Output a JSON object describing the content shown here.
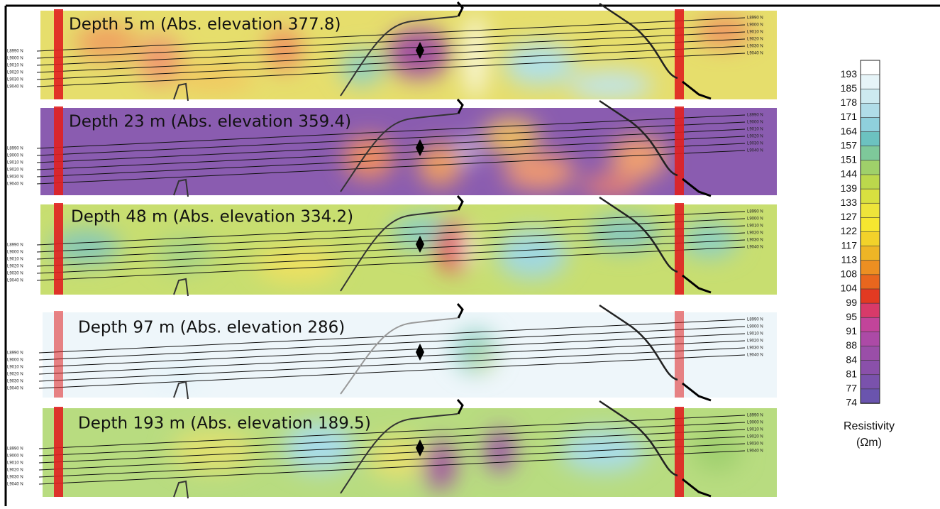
{
  "panels": [
    {
      "title": "Depth 5 m (Abs. elevation 377.8)"
    },
    {
      "title": "Depth 23 m (Abs. elevation 359.4)"
    },
    {
      "title": "Depth 48 m (Abs. elevation 334.2)"
    },
    {
      "title": "Depth 97 m (Abs. elevation 286)"
    },
    {
      "title": "Depth 193 m (Abs. elevation 189.5)"
    }
  ],
  "line_labels": [
    "L8990 N",
    "L9000 N",
    "L9010 N",
    "L9020 N",
    "L9030 N",
    "L9040 N"
  ],
  "colorbar": {
    "ticks": [
      "193",
      "185",
      "178",
      "171",
      "164",
      "157",
      "151",
      "144",
      "139",
      "133",
      "127",
      "122",
      "117",
      "113",
      "108",
      "104",
      "99",
      "95",
      "91",
      "88",
      "84",
      "81",
      "77",
      "74"
    ],
    "colors": [
      "#ffffff",
      "#e6f4f8",
      "#cdeaf0",
      "#b0dde8",
      "#8fd0dc",
      "#6cc2c0",
      "#7ec89a",
      "#9fd06a",
      "#bcd84c",
      "#d8e040",
      "#eee43a",
      "#f6e630",
      "#f2d22a",
      "#eeb526",
      "#ec8f22",
      "#e8661e",
      "#e23a22",
      "#d83a6a",
      "#c2449a",
      "#ac4aa6",
      "#9a4ea8",
      "#8a50aa",
      "#7a52ac",
      "#6a54ae"
    ],
    "label": "Resistivity",
    "unit": "(Ωm)"
  }
}
